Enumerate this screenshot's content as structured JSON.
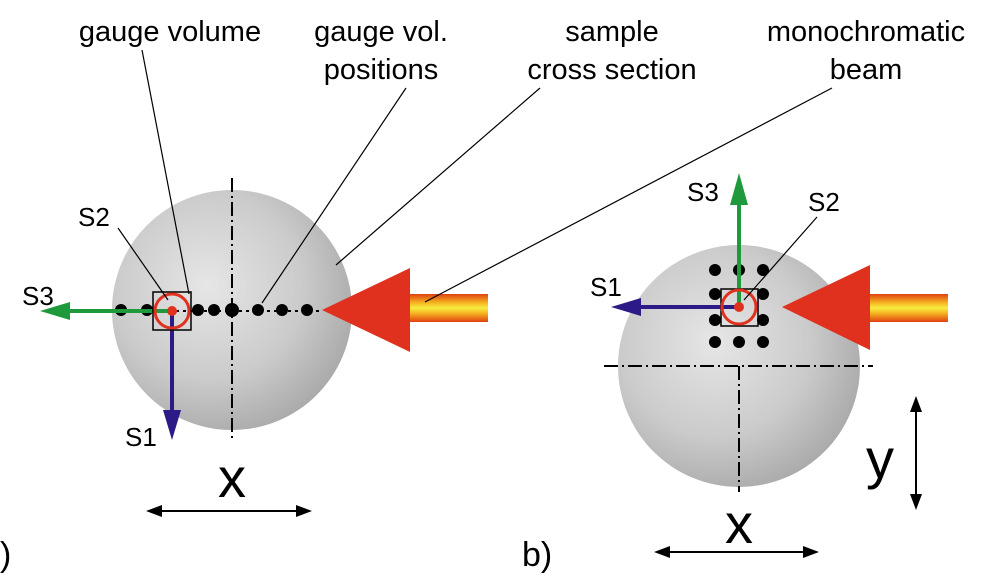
{
  "labels": {
    "gauge_volume": "gauge volume",
    "gauge_vol_line1": "gauge vol.",
    "gauge_vol_line2": "positions",
    "sample_line1": "sample",
    "sample_line2": "cross section",
    "beam_line1": "monochromatic",
    "beam_line2": "beam"
  },
  "panel_a": {
    "tag": ")",
    "s1": "S1",
    "s2": "S2",
    "s3": "S3",
    "x_axis": "x"
  },
  "panel_b": {
    "tag": "b)",
    "s1": "S1",
    "s2": "S2",
    "s3": "S3",
    "x_axis": "x",
    "y_axis": "y"
  },
  "colors": {
    "s1_arrow": "#2c1a86",
    "s3_arrow": "#1e9a3c",
    "gauge_circle": "#e0311f",
    "beam_arrowhead": "#e0311f",
    "beam_core": "#f0e030",
    "sample_fill": "#c8c8c8"
  }
}
